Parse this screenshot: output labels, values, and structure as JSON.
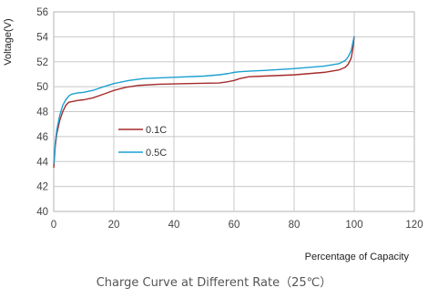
{
  "chart_data": {
    "type": "line",
    "title": "",
    "caption": "Charge Curve at Different Rate（25℃）",
    "xlabel": "Percentage of Capacity",
    "ylabel": "Voltage(V)",
    "xlim": [
      0,
      120
    ],
    "ylim": [
      40,
      56
    ],
    "xticks": [
      0,
      20,
      40,
      60,
      80,
      100,
      120
    ],
    "yticks": [
      40,
      42,
      44,
      46,
      48,
      50,
      52,
      54,
      56
    ],
    "grid": true,
    "legend_position": "center-left",
    "series": [
      {
        "name": "0.1C",
        "color": "#a52a2a",
        "x": [
          0,
          0.5,
          1,
          2,
          3,
          4,
          5,
          6,
          8,
          10,
          13,
          16,
          20,
          24,
          28,
          35,
          45,
          55,
          58,
          60,
          62,
          65,
          70,
          80,
          90,
          95,
          97,
          98,
          99,
          99.5,
          100
        ],
        "y": [
          43.5,
          45.2,
          46.2,
          47.3,
          48.0,
          48.5,
          48.75,
          48.8,
          48.9,
          48.95,
          49.1,
          49.35,
          49.7,
          49.95,
          50.1,
          50.2,
          50.25,
          50.3,
          50.4,
          50.5,
          50.65,
          50.8,
          50.85,
          50.95,
          51.15,
          51.35,
          51.55,
          51.8,
          52.3,
          53.0,
          54.0
        ]
      },
      {
        "name": "0.5C",
        "color": "#1ba1d0",
        "x": [
          0,
          0.5,
          1,
          2,
          3,
          4,
          5,
          6,
          8,
          10,
          13,
          16,
          20,
          25,
          30,
          40,
          50,
          55,
          58,
          60,
          62,
          65,
          70,
          80,
          90,
          95,
          97,
          98,
          99,
          99.5,
          100
        ],
        "y": [
          43.8,
          45.5,
          46.5,
          47.7,
          48.5,
          48.95,
          49.25,
          49.4,
          49.5,
          49.55,
          49.7,
          49.95,
          50.25,
          50.5,
          50.65,
          50.75,
          50.85,
          50.95,
          51.05,
          51.15,
          51.2,
          51.25,
          51.3,
          51.45,
          51.65,
          51.85,
          52.1,
          52.4,
          52.9,
          53.5,
          54.05
        ]
      }
    ]
  }
}
